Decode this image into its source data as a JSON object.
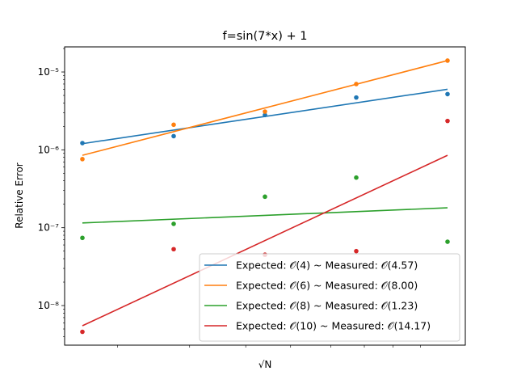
{
  "chart_data": {
    "type": "scatter",
    "title": "f=sin(7*x) + 1",
    "xlabel": "√N",
    "ylabel": "Relative Error",
    "yscale": "log",
    "ylim": [
      3.1e-09,
      2.1e-05
    ],
    "xlim": [
      0,
      6
    ],
    "x": [
      1,
      2,
      3,
      4,
      5
    ],
    "y_ticks": [
      {
        "value": 1e-08,
        "label": "10⁻⁸"
      },
      {
        "value": 1e-07,
        "label": "10⁻⁷"
      },
      {
        "value": 1e-06,
        "label": "10⁻⁶"
      },
      {
        "value": 1e-05,
        "label": "10⁻⁵"
      }
    ],
    "grid": false,
    "legend_position": "lower right",
    "series": [
      {
        "name": "Expected: 𝒪(4) ~ Measured: 𝒪(4.57)",
        "color": "#1f77b4",
        "points": [
          1.22e-06,
          1.5e-06,
          2.8e-06,
          4.7e-06,
          5.2e-06
        ],
        "fit": [
          1.2e-06,
          6e-06
        ]
      },
      {
        "name": "Expected: 𝒪(6) ~ Measured: 𝒪(8.00)",
        "color": "#ff7f0e",
        "points": [
          7.6e-07,
          2.1e-06,
          3.1e-06,
          7e-06,
          1.4e-05
        ],
        "fit": [
          8.5e-07,
          1.4e-05
        ]
      },
      {
        "name": "Expected: 𝒪(8) ~ Measured: 𝒪(1.23)",
        "color": "#2ca02c",
        "points": [
          7.4e-08,
          1.12e-07,
          2.5e-07,
          4.4e-07,
          6.6e-08
        ],
        "fit": [
          1.15e-07,
          1.8e-07
        ]
      },
      {
        "name": "Expected: 𝒪(10) ~ Measured: 𝒪(14.17)",
        "color": "#d62728",
        "points": [
          4.6e-09,
          5.3e-08,
          4.5e-08,
          5e-08,
          2.35e-06
        ],
        "fit": [
          5.5e-09,
          8.5e-07
        ]
      }
    ]
  }
}
